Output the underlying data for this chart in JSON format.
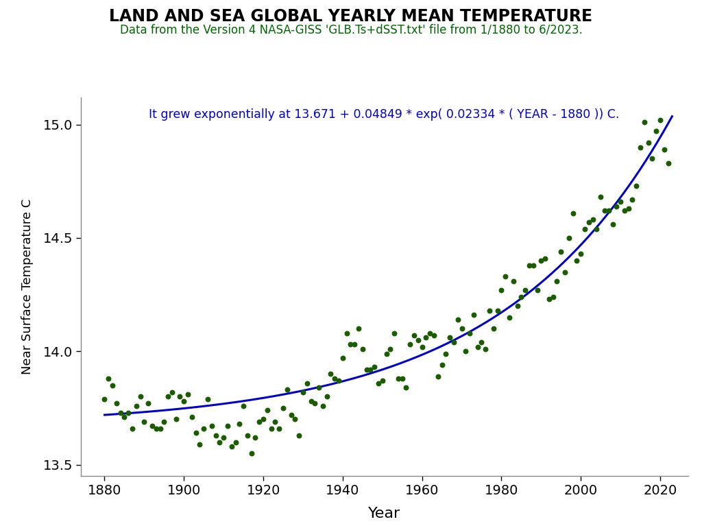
{
  "title": "LAND AND SEA GLOBAL YEARLY MEAN TEMPERATURE",
  "subtitle": "Data from the Version 4 NASA-GISS 'GLB.Ts+dSST.txt' file from 1/1880 to 6/2023.",
  "formula_text": "It grew exponentially at 13.671 + 0.04849 * exp( 0.02334 * ( YEAR - 1880 )) C.",
  "xlabel": "Year",
  "ylabel": "Near Surface Temperature C",
  "xlim": [
    1874,
    2027
  ],
  "ylim": [
    13.45,
    15.12
  ],
  "xticks": [
    1880,
    1900,
    1920,
    1940,
    1960,
    1980,
    2000,
    2020
  ],
  "yticks": [
    13.5,
    14.0,
    14.5,
    15.0
  ],
  "dot_color": "#1a5c00",
  "curve_color": "#0000cc",
  "title_color": "#000000",
  "subtitle_color": "#006600",
  "formula_color": "#0000cc",
  "background_color": "#ffffff",
  "a": 13.671,
  "b": 0.04849,
  "c": 0.02334,
  "year0": 1880,
  "years": [
    1880,
    1881,
    1882,
    1883,
    1884,
    1885,
    1886,
    1887,
    1888,
    1889,
    1890,
    1891,
    1892,
    1893,
    1894,
    1895,
    1896,
    1897,
    1898,
    1899,
    1900,
    1901,
    1902,
    1903,
    1904,
    1905,
    1906,
    1907,
    1908,
    1909,
    1910,
    1911,
    1912,
    1913,
    1914,
    1915,
    1916,
    1917,
    1918,
    1919,
    1920,
    1921,
    1922,
    1923,
    1924,
    1925,
    1926,
    1927,
    1928,
    1929,
    1930,
    1931,
    1932,
    1933,
    1934,
    1935,
    1936,
    1937,
    1938,
    1939,
    1940,
    1941,
    1942,
    1943,
    1944,
    1945,
    1946,
    1947,
    1948,
    1949,
    1950,
    1951,
    1952,
    1953,
    1954,
    1955,
    1956,
    1957,
    1958,
    1959,
    1960,
    1961,
    1962,
    1963,
    1964,
    1965,
    1966,
    1967,
    1968,
    1969,
    1970,
    1971,
    1972,
    1973,
    1974,
    1975,
    1976,
    1977,
    1978,
    1979,
    1980,
    1981,
    1982,
    1983,
    1984,
    1985,
    1986,
    1987,
    1988,
    1989,
    1990,
    1991,
    1992,
    1993,
    1994,
    1995,
    1996,
    1997,
    1998,
    1999,
    2000,
    2001,
    2002,
    2003,
    2004,
    2005,
    2006,
    2007,
    2008,
    2009,
    2010,
    2011,
    2012,
    2013,
    2014,
    2015,
    2016,
    2017,
    2018,
    2019,
    2020,
    2021,
    2022
  ],
  "temps": [
    13.79,
    13.88,
    13.85,
    13.77,
    13.73,
    13.71,
    13.73,
    13.66,
    13.76,
    13.8,
    13.69,
    13.77,
    13.67,
    13.66,
    13.66,
    13.69,
    13.8,
    13.82,
    13.7,
    13.8,
    13.78,
    13.81,
    13.71,
    13.64,
    13.59,
    13.66,
    13.79,
    13.67,
    13.63,
    13.6,
    13.62,
    13.67,
    13.58,
    13.6,
    13.68,
    13.76,
    13.63,
    13.55,
    13.62,
    13.69,
    13.7,
    13.74,
    13.66,
    13.69,
    13.66,
    13.75,
    13.83,
    13.72,
    13.7,
    13.63,
    13.82,
    13.86,
    13.78,
    13.77,
    13.84,
    13.76,
    13.8,
    13.9,
    13.88,
    13.87,
    13.97,
    14.08,
    14.03,
    14.03,
    14.1,
    14.01,
    13.92,
    13.92,
    13.93,
    13.86,
    13.87,
    13.99,
    14.01,
    14.08,
    13.88,
    13.88,
    13.84,
    14.03,
    14.07,
    14.05,
    14.02,
    14.06,
    14.08,
    14.07,
    13.89,
    13.94,
    13.99,
    14.06,
    14.04,
    14.14,
    14.1,
    14.0,
    14.08,
    14.16,
    14.02,
    14.04,
    14.01,
    14.18,
    14.1,
    14.18,
    14.27,
    14.33,
    14.15,
    14.31,
    14.2,
    14.24,
    14.27,
    14.38,
    14.38,
    14.27,
    14.4,
    14.41,
    14.23,
    14.24,
    14.31,
    14.44,
    14.35,
    14.5,
    14.61,
    14.4,
    14.43,
    14.54,
    14.57,
    14.58,
    14.54,
    14.68,
    14.62,
    14.62,
    14.56,
    14.64,
    14.66,
    14.62,
    14.63,
    14.67,
    14.73,
    14.9,
    15.01,
    14.92,
    14.85,
    14.97,
    15.02,
    14.89,
    14.83
  ]
}
